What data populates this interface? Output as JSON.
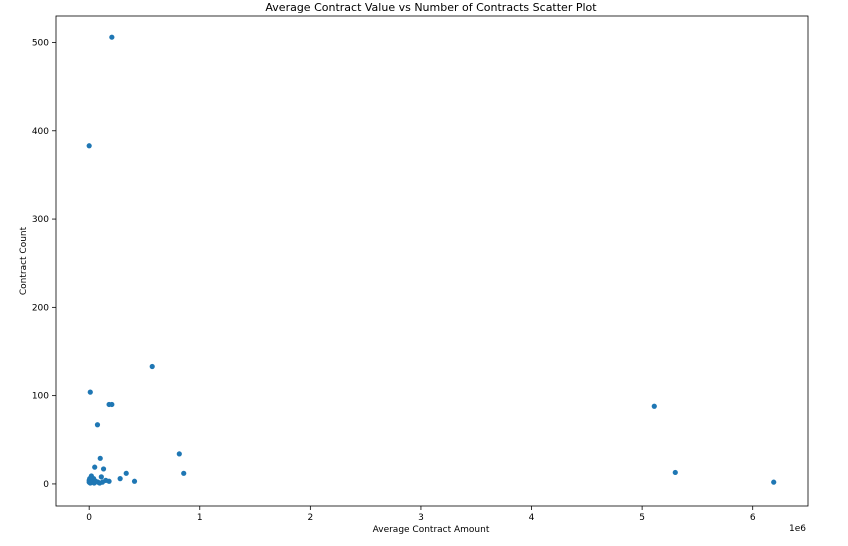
{
  "chart_data": {
    "type": "scatter",
    "title": "Average Contract Value vs Number of Contracts Scatter Plot",
    "xlabel": "Average Contract Amount",
    "ylabel": "Contract Count",
    "x_scale_label": "1e6",
    "xlim": [
      -300000,
      6500000
    ],
    "ylim": [
      -25,
      530
    ],
    "x_ticks": [
      0,
      1000000,
      2000000,
      3000000,
      4000000,
      5000000,
      6000000
    ],
    "x_tick_labels": [
      "0",
      "1",
      "2",
      "3",
      "4",
      "5",
      "6"
    ],
    "y_ticks": [
      0,
      100,
      200,
      300,
      400,
      500
    ],
    "y_tick_labels": [
      "0",
      "100",
      "200",
      "300",
      "400",
      "500"
    ],
    "grid": false,
    "marker_color": "#1f77b4",
    "series": [
      {
        "points": [
          {
            "x": 205000,
            "y": 506
          },
          {
            "x": 0,
            "y": 383
          },
          {
            "x": 570000,
            "y": 133
          },
          {
            "x": 10000,
            "y": 104
          },
          {
            "x": 180000,
            "y": 90
          },
          {
            "x": 205000,
            "y": 90
          },
          {
            "x": 5110000,
            "y": 88
          },
          {
            "x": 75000,
            "y": 67
          },
          {
            "x": 815000,
            "y": 34
          },
          {
            "x": 100000,
            "y": 29
          },
          {
            "x": 50000,
            "y": 19
          },
          {
            "x": 130000,
            "y": 17
          },
          {
            "x": 5300000,
            "y": 13
          },
          {
            "x": 335000,
            "y": 12
          },
          {
            "x": 855000,
            "y": 12
          },
          {
            "x": 20000,
            "y": 9
          },
          {
            "x": 110000,
            "y": 8
          },
          {
            "x": 5000,
            "y": 6
          },
          {
            "x": 40000,
            "y": 6
          },
          {
            "x": 280000,
            "y": 6
          },
          {
            "x": 0,
            "y": 4
          },
          {
            "x": 30000,
            "y": 4
          },
          {
            "x": 60000,
            "y": 3
          },
          {
            "x": 150000,
            "y": 4
          },
          {
            "x": 180000,
            "y": 3
          },
          {
            "x": 410000,
            "y": 3
          },
          {
            "x": 0,
            "y": 2
          },
          {
            "x": 10000,
            "y": 1
          },
          {
            "x": 25000,
            "y": 2
          },
          {
            "x": 45000,
            "y": 1
          },
          {
            "x": 80000,
            "y": 2
          },
          {
            "x": 95000,
            "y": 1
          },
          {
            "x": 120000,
            "y": 2
          },
          {
            "x": 6190000,
            "y": 2
          }
        ]
      }
    ]
  }
}
